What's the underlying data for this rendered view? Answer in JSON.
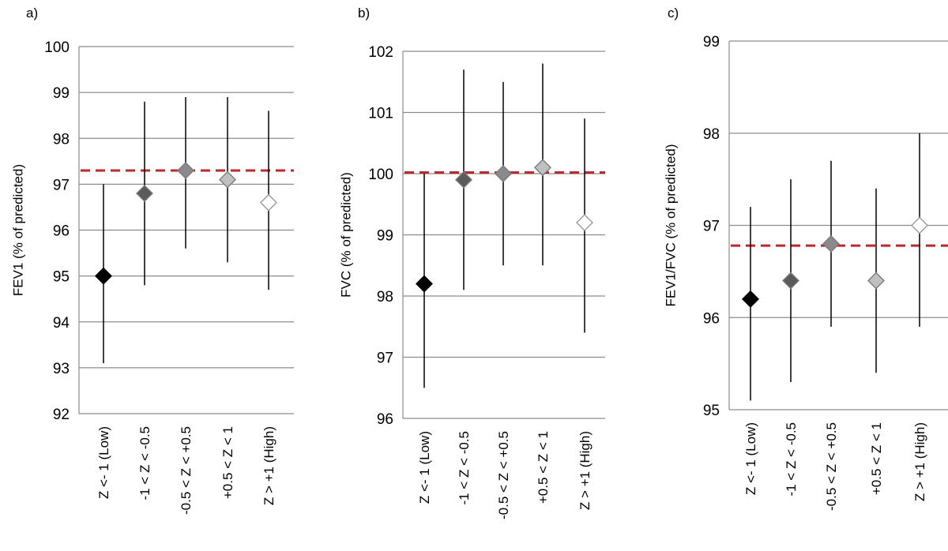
{
  "chart_data": [
    {
      "panel_label": "a)",
      "type": "scatter",
      "ylabel": "FEV1 (% of predicted)",
      "ylim": [
        92,
        100
      ],
      "yticks": [
        92,
        93,
        94,
        95,
        96,
        97,
        98,
        99,
        100
      ],
      "categories": [
        "Z <- 1 (Low)",
        "-1 < Z < -0.5",
        "-0.5 < Z < +0.5",
        "+0.5 < Z < 1",
        "Z > +1 (High)"
      ],
      "values": [
        95.0,
        96.8,
        97.3,
        97.1,
        96.6
      ],
      "error_low": [
        93.1,
        94.8,
        95.6,
        95.3,
        94.7
      ],
      "error_high": [
        97.0,
        98.8,
        98.9,
        98.9,
        98.6
      ],
      "reference_line": 97.3,
      "marker_fills": [
        "#000000",
        "#5a5a5a",
        "#8a8a8a",
        "#c0c0c0",
        "#ffffff"
      ],
      "reference_color": "#c0272d",
      "grid": true
    },
    {
      "panel_label": "b)",
      "type": "scatter",
      "ylabel": "FVC (% of predicted)",
      "ylim": [
        96,
        102
      ],
      "yticks": [
        96,
        97,
        98,
        99,
        100,
        101,
        102
      ],
      "categories": [
        "Z <- 1 (Low)",
        "-1 < Z < -0.5",
        "-0.5 < Z < +0.5",
        "+0.5 < Z < 1",
        "Z > +1 (High)"
      ],
      "values": [
        98.2,
        99.9,
        100.0,
        100.1,
        99.2
      ],
      "error_low": [
        96.5,
        98.1,
        98.5,
        98.5,
        97.4
      ],
      "error_high": [
        100.0,
        101.7,
        101.5,
        101.8,
        100.9
      ],
      "reference_line": 100.02,
      "marker_fills": [
        "#000000",
        "#5a5a5a",
        "#8a8a8a",
        "#c0c0c0",
        "#ffffff"
      ],
      "reference_color": "#c0272d",
      "grid": true
    },
    {
      "panel_label": "c)",
      "type": "scatter",
      "ylabel": "FEV1/FVC (% of predicted)",
      "ylim": [
        95,
        99
      ],
      "yticks": [
        95,
        96,
        97,
        98,
        99
      ],
      "categories": [
        "Z <- 1 (Low)",
        "-1 < Z < -0.5",
        "-0.5 < Z < +0.5",
        "+0.5 < Z < 1",
        "Z > +1 (High)"
      ],
      "values": [
        96.2,
        96.4,
        96.8,
        96.4,
        97.0
      ],
      "error_low": [
        95.1,
        95.3,
        95.9,
        95.4,
        95.9
      ],
      "error_high": [
        97.2,
        97.5,
        97.7,
        97.4,
        98.0
      ],
      "reference_line": 96.78,
      "marker_fills": [
        "#000000",
        "#5a5a5a",
        "#8a8a8a",
        "#c0c0c0",
        "#ffffff"
      ],
      "reference_color": "#c0272d",
      "grid": true
    }
  ]
}
